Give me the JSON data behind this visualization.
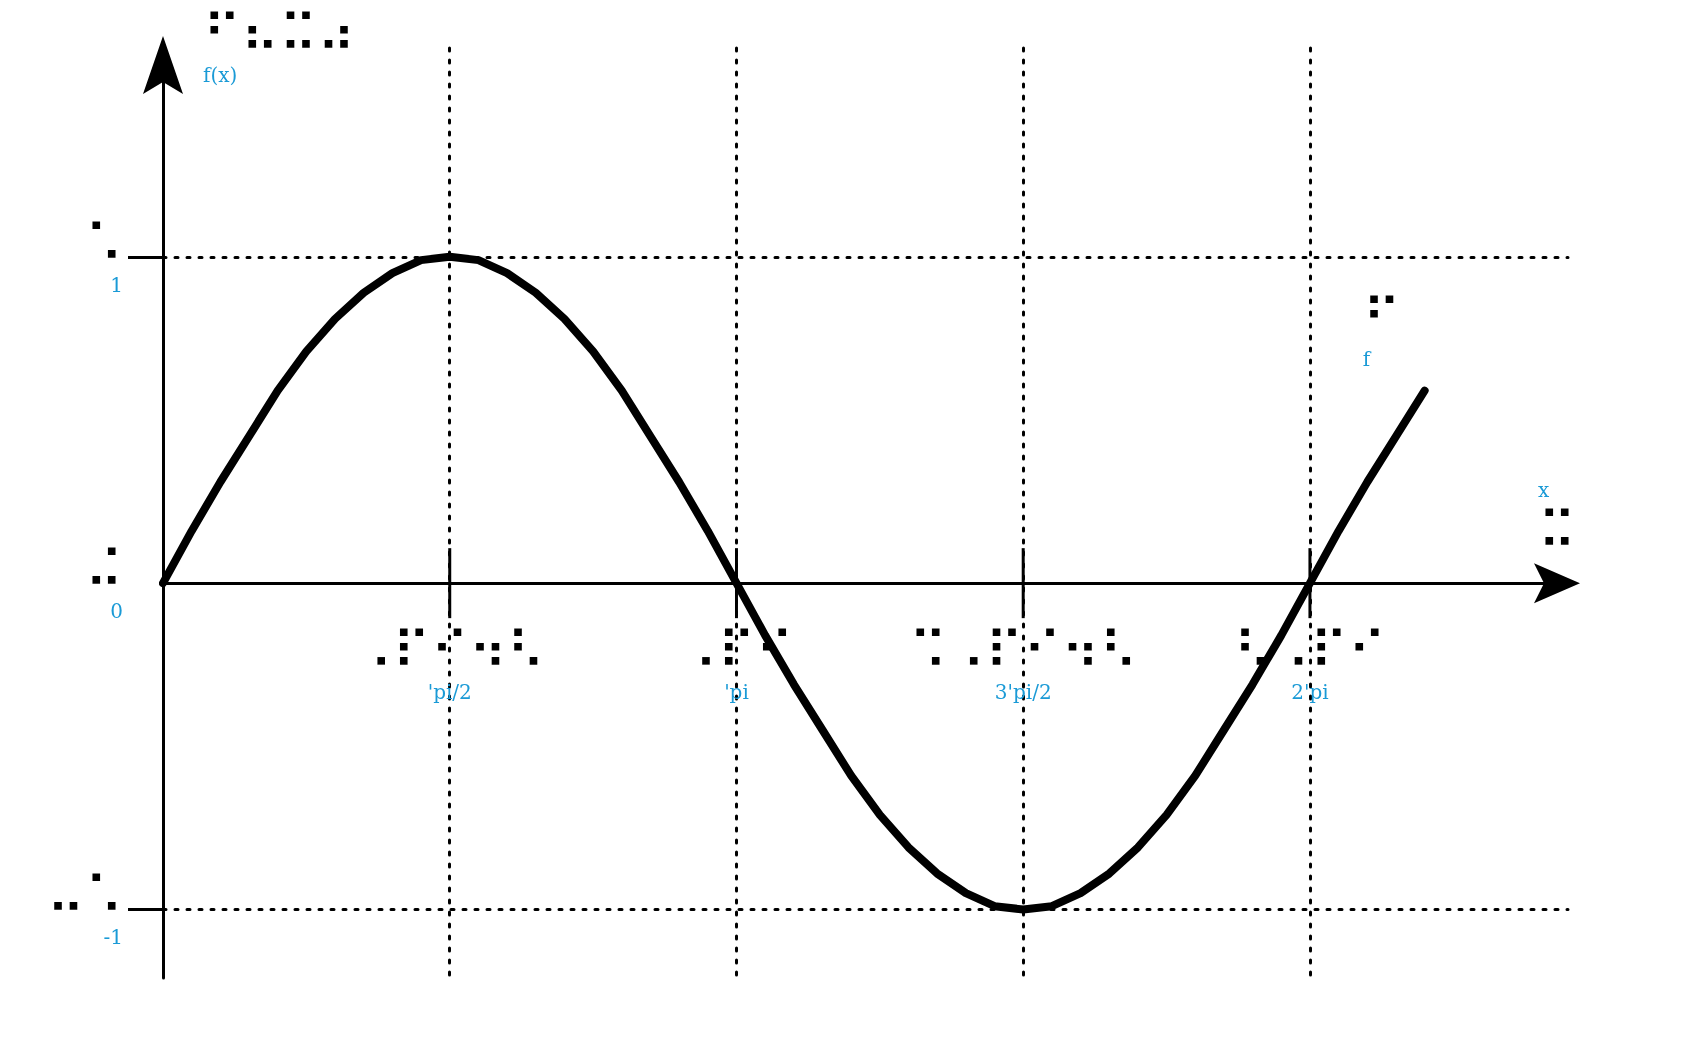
{
  "chart_data": {
    "type": "line",
    "xlabel": "x\n⠭",
    "ylabel": "⠋⠦⠭⠴\nf(x)",
    "categories": [
      null,
      null,
      null,
      null,
      null,
      null,
      null,
      null,
      null,
      null,
      "⠠⠏⠊⠲⠣\n'pi/2",
      null,
      null,
      null,
      null,
      null,
      null,
      null,
      null,
      null,
      "⠠⠏⠊\n'pi",
      null,
      null,
      null,
      null,
      null,
      null,
      null,
      null,
      null,
      "⠩⠠⠏⠊⠲⠣\n3'pi/2",
      null,
      null,
      null,
      null,
      null,
      null,
      null,
      null,
      null,
      "⠣⠠⠏⠊\n2'pi",
      null,
      null,
      null,
      null,
      null,
      null,
      null,
      null,
      null
    ],
    "series": [
      {
        "name": "⠋\nf",
        "color": "#000000",
        "values": [
          0,
          0.16,
          0.31,
          0.45,
          0.59,
          0.71,
          0.81,
          0.89,
          0.95,
          0.99,
          1.0,
          0.99,
          0.95,
          0.89,
          0.81,
          0.71,
          0.59,
          0.45,
          0.31,
          0.16,
          0,
          -0.16,
          -0.31,
          -0.45,
          -0.59,
          -0.71,
          -0.81,
          -0.89,
          -0.95,
          -0.99,
          -1.0,
          -0.99,
          -0.95,
          -0.89,
          -0.81,
          -0.71,
          -0.59,
          -0.45,
          -0.31,
          -0.16,
          0,
          0.16,
          0.31,
          0.45,
          0.59,
          null,
          null,
          null,
          null,
          null
        ]
      }
    ],
    "ylim": [
      -1.21,
      1.64
    ],
    "yticks": [
      {
        "value": -1,
        "label": "⠤⠡\n-1"
      },
      {
        "value": 0,
        "label": "⠬\n0"
      },
      {
        "value": 1,
        "label": "⠡\n1"
      }
    ],
    "grid": true,
    "legend": false
  }
}
